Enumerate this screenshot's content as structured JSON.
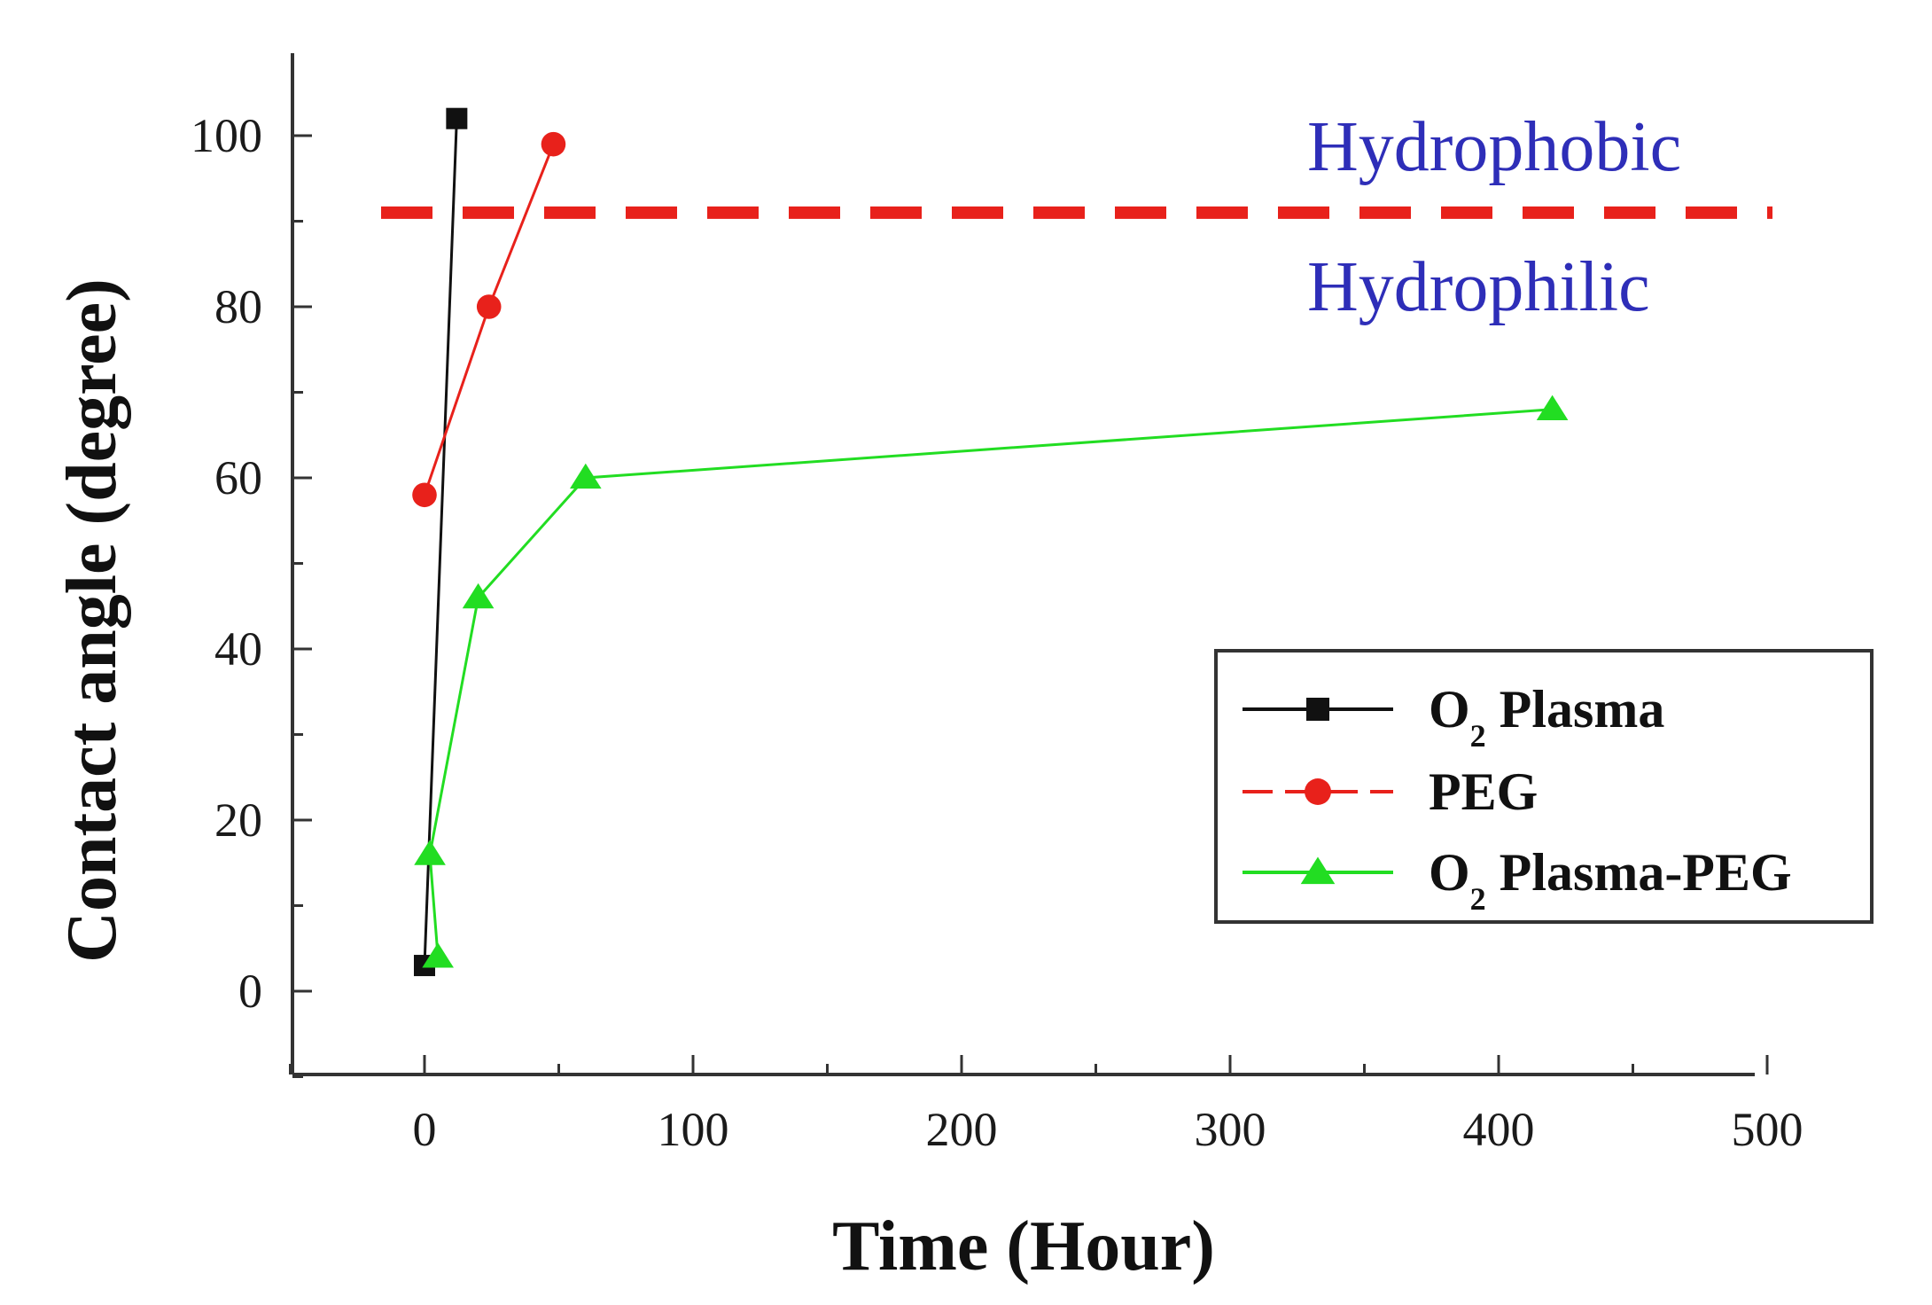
{
  "chart_data": {
    "type": "line",
    "xlabel": "Time (Hour)",
    "ylabel": "Contact angle (degree)",
    "xlim": [
      -50,
      500
    ],
    "ylim": [
      -10,
      110
    ],
    "xticks": [
      0,
      100,
      200,
      300,
      400,
      500
    ],
    "yticks": [
      0,
      20,
      40,
      60,
      80,
      100
    ],
    "grid": false,
    "legend_position": "bottom-right",
    "threshold": {
      "y": 91,
      "color": "#e8211b",
      "style": "dashed"
    },
    "annotations": [
      {
        "text": "Hydrophobic",
        "color": "#2e2eb8"
      },
      {
        "text": "Hydrophilic",
        "color": "#2e2eb8"
      }
    ],
    "series": [
      {
        "name": "O2 Plasma",
        "label_main": "O",
        "label_sub": "2",
        "label_rest": " Plasma",
        "color": "#111111",
        "marker": "square",
        "x": [
          0,
          12
        ],
        "y": [
          3,
          102
        ]
      },
      {
        "name": "PEG",
        "label_main": "PEG",
        "label_sub": "",
        "label_rest": "",
        "color": "#e8211b",
        "marker": "circle",
        "x": [
          0,
          24,
          48
        ],
        "y": [
          58,
          80,
          99
        ]
      },
      {
        "name": "O2 Plasma-PEG",
        "label_main": "O",
        "label_sub": "2",
        "label_rest": " Plasma-PEG",
        "color": "#22dd22",
        "marker": "triangle",
        "x": [
          5,
          2,
          20,
          60,
          420
        ],
        "y": [
          4,
          16,
          46,
          60,
          68
        ]
      }
    ]
  }
}
